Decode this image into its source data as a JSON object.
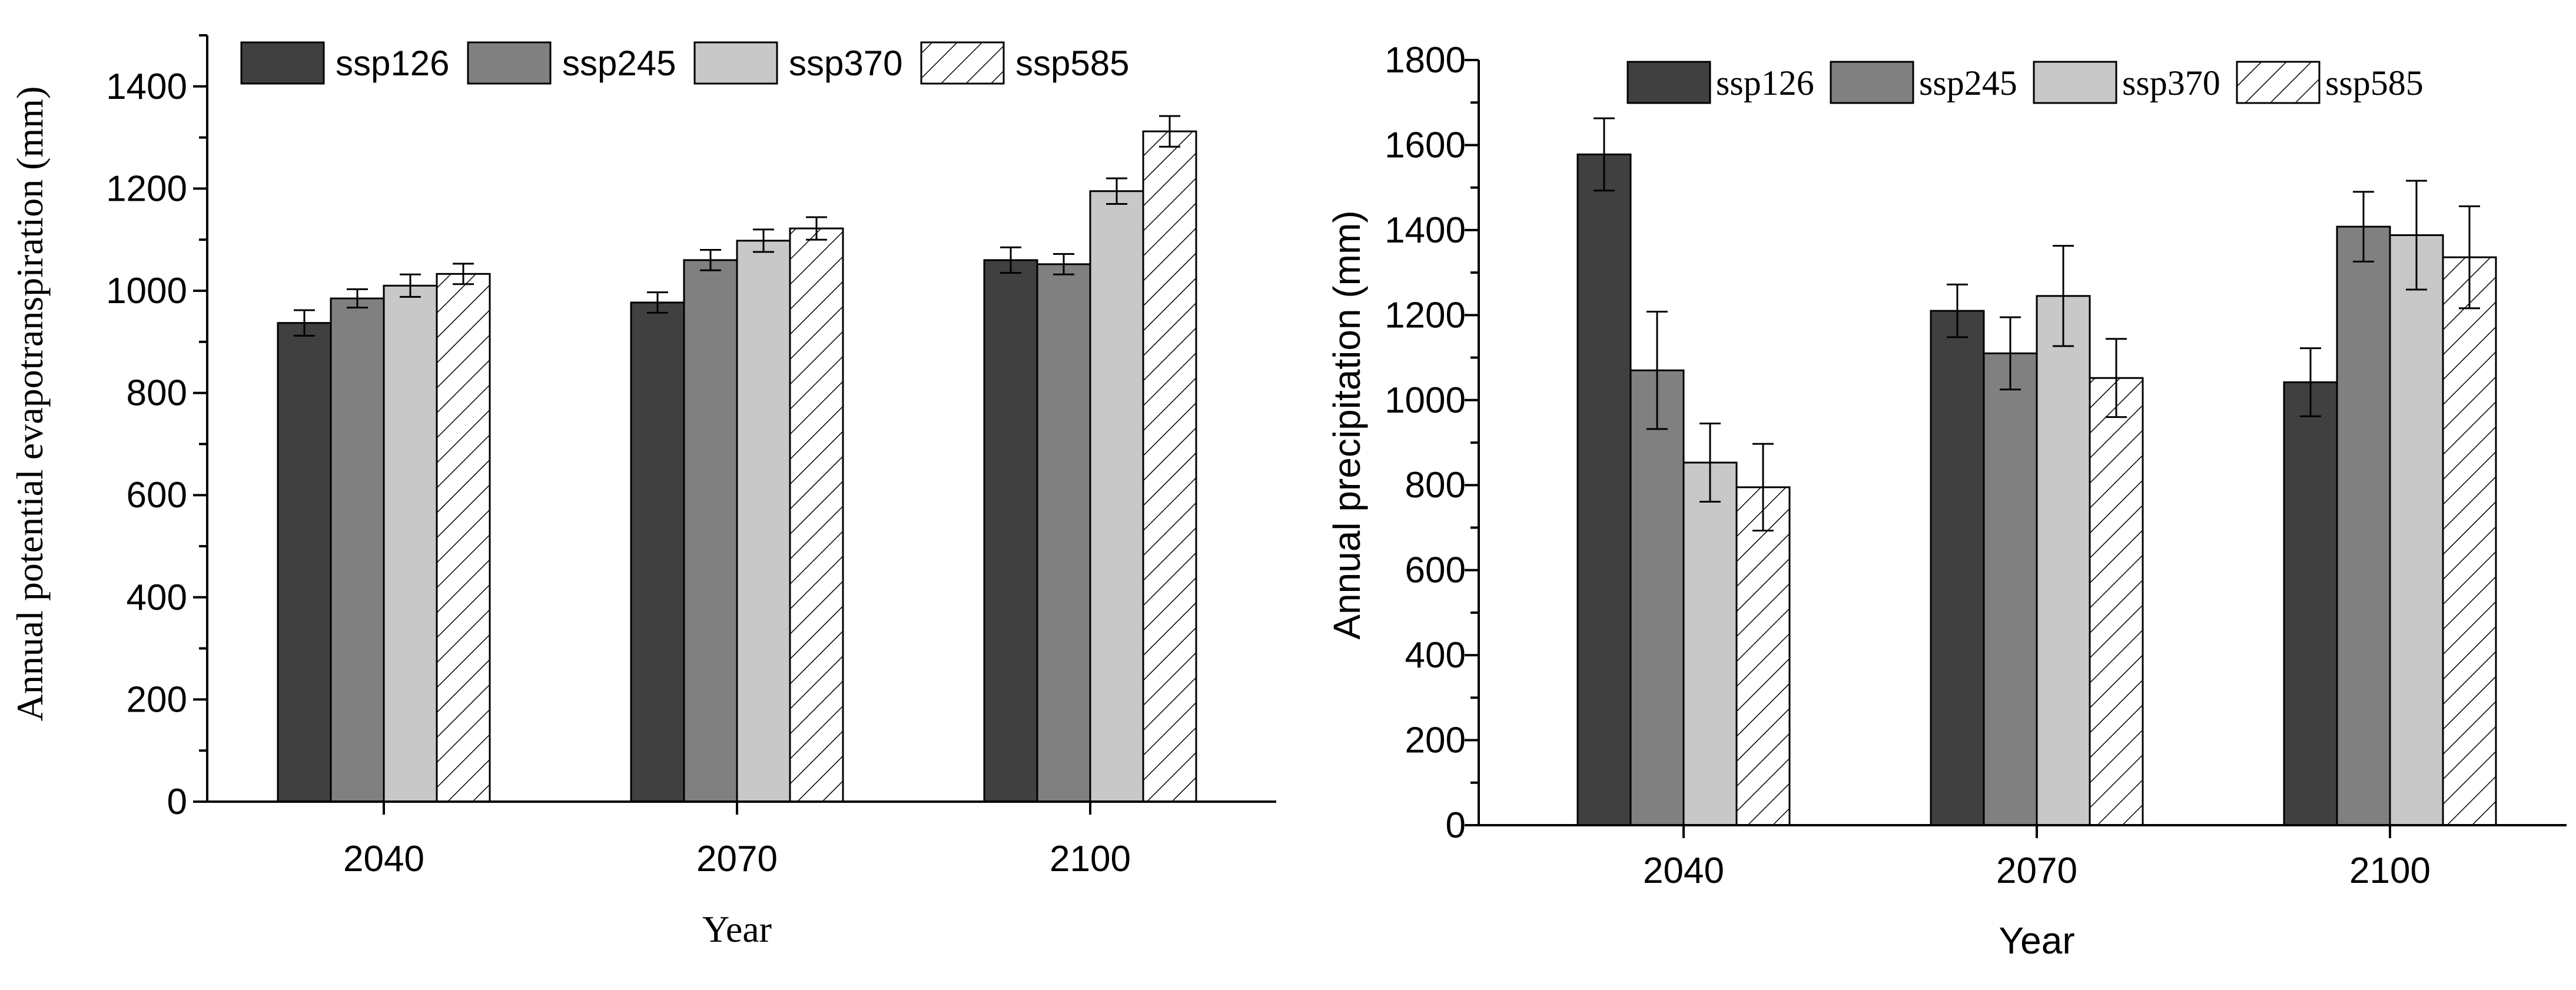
{
  "chart_data": [
    {
      "type": "bar",
      "id": "pet",
      "title": "",
      "xlabel": "Year",
      "ylabel": "Annual potential evapotranspiration (mm)",
      "ylim": [
        0,
        1500
      ],
      "yticks": [
        0,
        200,
        400,
        600,
        800,
        1000,
        1200,
        1400
      ],
      "ytick_labels": [
        "0",
        "200",
        "400",
        "600",
        "800",
        "1000",
        "1200",
        "1400"
      ],
      "minor_tick_step": 100,
      "categories": [
        "2040",
        "2070",
        "2100"
      ],
      "legend_position": "top",
      "series": [
        {
          "name": "ssp126",
          "style": "dark",
          "values": [
            937,
            977,
            1060
          ],
          "errors": [
            25,
            20,
            25
          ]
        },
        {
          "name": "ssp245",
          "style": "medium",
          "values": [
            985,
            1060,
            1052
          ],
          "errors": [
            18,
            20,
            20
          ]
        },
        {
          "name": "ssp370",
          "style": "light",
          "values": [
            1010,
            1098,
            1195
          ],
          "errors": [
            22,
            22,
            25
          ]
        },
        {
          "name": "ssp585",
          "style": "hatch",
          "values": [
            1033,
            1122,
            1312
          ],
          "errors": [
            20,
            22,
            30
          ]
        }
      ]
    },
    {
      "type": "bar",
      "id": "precip",
      "title": "",
      "xlabel": "Year",
      "ylabel": "Annual precipitation (mm)",
      "ylim": [
        0,
        1800
      ],
      "yticks": [
        0,
        200,
        400,
        600,
        800,
        1000,
        1200,
        1400,
        1600,
        1800
      ],
      "ytick_labels": [
        "0",
        "200",
        "400",
        "600",
        "800",
        "1000",
        "1200",
        "1400",
        "1600",
        "1800"
      ],
      "minor_tick_step": 100,
      "categories": [
        "2040",
        "2070",
        "2100"
      ],
      "legend_position": "top",
      "series": [
        {
          "name": "ssp126",
          "style": "dark",
          "values": [
            1578,
            1210,
            1042
          ],
          "errors": [
            85,
            62,
            80
          ]
        },
        {
          "name": "ssp245",
          "style": "medium",
          "values": [
            1070,
            1110,
            1408
          ],
          "errors": [
            138,
            85,
            82
          ]
        },
        {
          "name": "ssp370",
          "style": "light",
          "values": [
            853,
            1245,
            1388
          ],
          "errors": [
            92,
            118,
            128
          ]
        },
        {
          "name": "ssp585",
          "style": "hatch",
          "values": [
            795,
            1052,
            1336
          ],
          "errors": [
            102,
            92,
            120
          ]
        }
      ]
    }
  ],
  "colors": {
    "dark": "#404040",
    "medium": "#808080",
    "light": "#c8c8c8",
    "hatch_bg": "#ffffff",
    "stroke": "#000000"
  }
}
